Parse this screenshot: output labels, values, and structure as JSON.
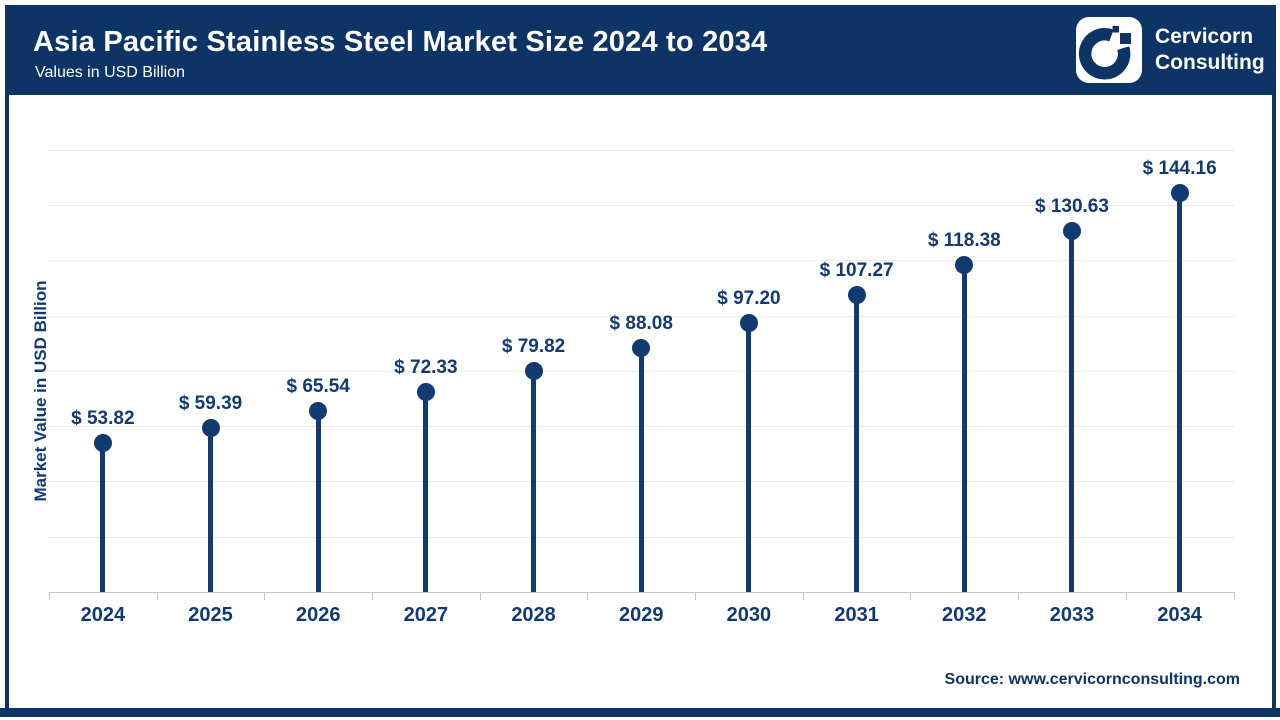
{
  "header": {
    "title": "Asia Pacific Stainless Steel Market Size 2024 to 2034",
    "subtitle": "Values in USD Billion",
    "logo": {
      "line1": "Cervicorn",
      "line2": "Consulting"
    }
  },
  "chart_data": {
    "type": "bar",
    "variant": "lollipop",
    "title": "Asia Pacific Stainless Steel Market Size 2024 to 2034",
    "categories": [
      "2024",
      "2025",
      "2026",
      "2027",
      "2028",
      "2029",
      "2030",
      "2031",
      "2032",
      "2033",
      "2034"
    ],
    "values": [
      53.82,
      59.39,
      65.54,
      72.33,
      79.82,
      88.08,
      97.2,
      107.27,
      118.38,
      130.63,
      144.16
    ],
    "value_prefix": "$ ",
    "value_decimals": 2,
    "xlabel": "",
    "ylabel": "Market Value in USD Billion",
    "ylim": [
      0,
      160
    ],
    "grid_step": 20,
    "grid": "on",
    "legend": "none"
  },
  "footer": {
    "source": "Source: www.cervicornconsulting.com"
  },
  "colors": {
    "header_navy": "#0e3466",
    "chart_navy": "#133a70",
    "gridline": "#ebebeb",
    "axis": "#c6c6c6",
    "background": "#ffffff"
  }
}
